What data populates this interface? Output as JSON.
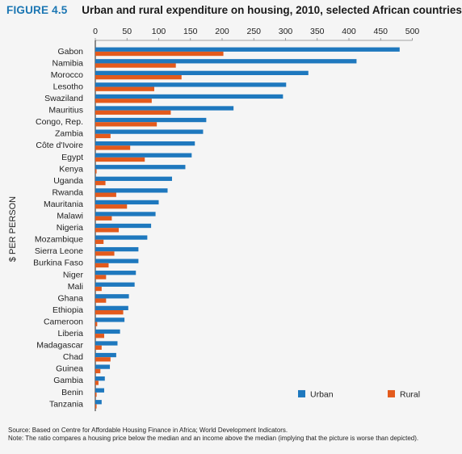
{
  "figure": {
    "label": "FIGURE 4.5",
    "title": "Urban and rural expenditure on housing, 2010, selected African countries",
    "source": "Source: Based on Centre for Affordable Housing Finance in Africa; World Development Indicators.",
    "note": "Note: The ratio compares a housing price below the median and an income above the median (implying that the picture is worse than depicted)."
  },
  "colors": {
    "urban": "#1e78be",
    "rural": "#e35a1c",
    "axis": "#222222",
    "tick": "#888888"
  },
  "chart_data": {
    "type": "bar",
    "orientation": "horizontal",
    "title": "",
    "xlabel": "",
    "ylabel": "$ PER PERSON",
    "xlim": [
      0,
      500
    ],
    "xticks": [
      0,
      50,
      100,
      150,
      200,
      250,
      300,
      350,
      400,
      450,
      500
    ],
    "x_axis_position": "top",
    "grid": false,
    "legend_position": "bottom-right",
    "categories": [
      "Gabon",
      "Namibia",
      "Morocco",
      "Lesotho",
      "Swaziland",
      "Mauritius",
      "Congo, Rep.",
      "Zambia",
      "Côte d'Ivoire",
      "Egypt",
      "Kenya",
      "Uganda",
      "Rwanda",
      "Mauritania",
      "Malawi",
      "Nigeria",
      "Mozambique",
      "Sierra Leone",
      "Burkina Faso",
      "Niger",
      "Mali",
      "Ghana",
      "Ethiopia",
      "Cameroon",
      "Liberia",
      "Madagascar",
      "Chad",
      "Guinea",
      "Gambia",
      "Benin",
      "Tanzania"
    ],
    "series": [
      {
        "name": "Urban",
        "values": [
          480,
          412,
          336,
          301,
          296,
          218,
          175,
          170,
          157,
          152,
          142,
          121,
          114,
          100,
          95,
          88,
          82,
          68,
          68,
          64,
          62,
          53,
          52,
          46,
          39,
          35,
          33,
          23,
          15,
          14,
          10
        ]
      },
      {
        "name": "Rural",
        "values": [
          202,
          127,
          136,
          93,
          89,
          119,
          97,
          24,
          55,
          78,
          2,
          16,
          33,
          50,
          26,
          37,
          13,
          30,
          21,
          17,
          10,
          17,
          44,
          3,
          14,
          10,
          24,
          8,
          5,
          2,
          2
        ]
      }
    ]
  }
}
